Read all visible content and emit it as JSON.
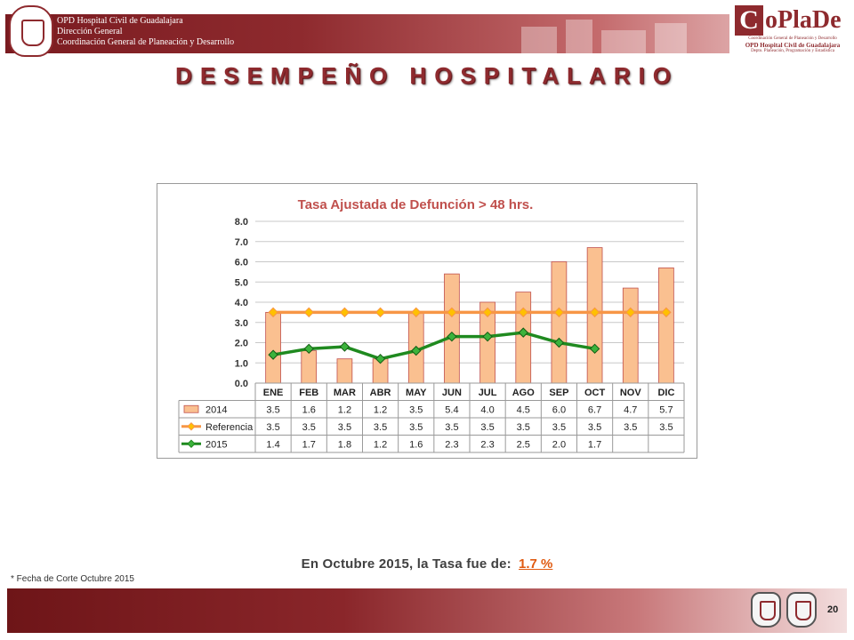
{
  "header": {
    "org_lines": [
      "OPD Hospital Civil de Guadalajara",
      "Dirección General",
      "Coordinación General de Planeación y Desarrollo"
    ],
    "logo": {
      "letter": "C",
      "rest": "oPlaDe",
      "line1": "Coordinación General de Planeación y Desarrollo",
      "line2": "OPD Hospital Civil de Guadalajara",
      "line3": "Depto. Planeación, Programación y Estadística"
    }
  },
  "page_title": "DESEMPEÑO HOSPITALARIO",
  "colors": {
    "bar_2014": "#fac090",
    "bar_border": "#c0504d",
    "referencia": "#f79646",
    "referencia_marker": "#ffc000",
    "series_2015": "#1f8a1f",
    "series_2015_marker": "#3cb33c",
    "title": "#c0504d"
  },
  "chart_data": {
    "type": "bar",
    "title": "Tasa Ajustada de Defunción > 48 hrs.",
    "categories": [
      "ENE",
      "FEB",
      "MAR",
      "ABR",
      "MAY",
      "JUN",
      "JUL",
      "AGO",
      "SEP",
      "OCT",
      "NOV",
      "DIC"
    ],
    "ylim": [
      0,
      8
    ],
    "yticks": [
      "0.0",
      "1.0",
      "2.0",
      "3.0",
      "4.0",
      "5.0",
      "6.0",
      "7.0",
      "8.0"
    ],
    "grid": true,
    "series": [
      {
        "name": "2014",
        "type": "bar",
        "values": [
          3.5,
          1.6,
          1.2,
          1.2,
          3.5,
          5.4,
          4.0,
          4.5,
          6.0,
          6.7,
          4.7,
          5.7
        ],
        "labels": [
          "3.5",
          "1.6",
          "1.2",
          "1.2",
          "3.5",
          "5.4",
          "4.0",
          "4.5",
          "6.0",
          "6.7",
          "4.7",
          "5.7"
        ]
      },
      {
        "name": "Referencia",
        "type": "line",
        "values": [
          3.5,
          3.5,
          3.5,
          3.5,
          3.5,
          3.5,
          3.5,
          3.5,
          3.5,
          3.5,
          3.5,
          3.5
        ],
        "labels": [
          "3.5",
          "3.5",
          "3.5",
          "3.5",
          "3.5",
          "3.5",
          "3.5",
          "3.5",
          "3.5",
          "3.5",
          "3.5",
          "3.5"
        ]
      },
      {
        "name": "2015",
        "type": "line",
        "values": [
          1.4,
          1.7,
          1.8,
          1.2,
          1.6,
          2.3,
          2.3,
          2.5,
          2.0,
          1.7,
          null,
          null
        ],
        "labels": [
          "1.4",
          "1.7",
          "1.8",
          "1.2",
          "1.6",
          "2.3",
          "2.3",
          "2.5",
          "2.0",
          "1.7",
          "",
          ""
        ]
      }
    ]
  },
  "note": {
    "prefix": "En Octubre 2015, la Tasa fue de:",
    "value": "1.7 %"
  },
  "cut_note": "* Fecha de Corte Octubre 2015",
  "page_number": "20"
}
